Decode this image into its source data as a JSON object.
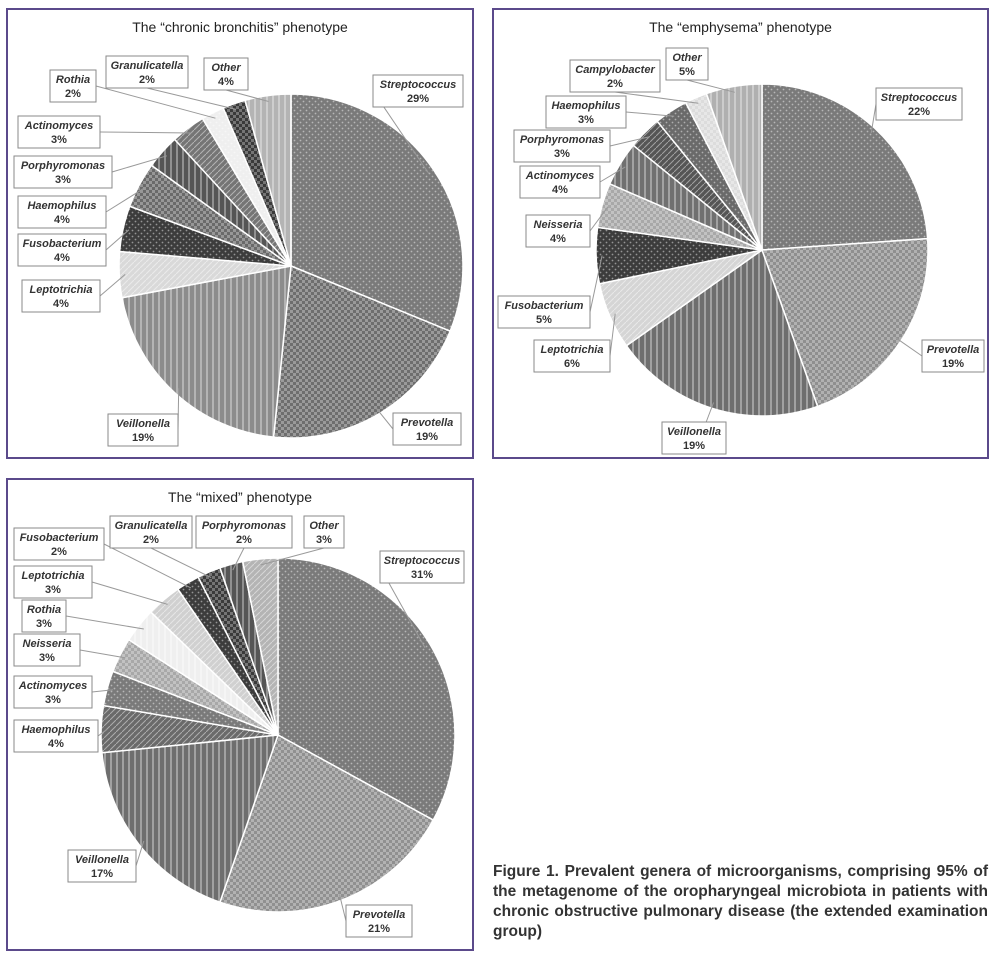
{
  "chart_data": [
    {
      "type": "pie",
      "title": "The “chronic bronchitis” phenotype",
      "series": [
        {
          "values": [
            29,
            19,
            19,
            4,
            4,
            4,
            3,
            3,
            2,
            2,
            4
          ]
        }
      ],
      "categories": [
        "Streptococcus",
        "Prevotella",
        "Veillonella",
        "Leptotrichia",
        "Fusobacterium",
        "Haemophilus",
        "Porphyromonas",
        "Actinomyces",
        "Rothia",
        "Granulicatella",
        "Other"
      ],
      "value_labels": [
        "29%",
        "19%",
        "19%",
        "4%",
        "4%",
        "4%",
        "3%",
        "3%",
        "2%",
        "2%",
        "4%"
      ],
      "colors": [
        "#7a7a7a",
        "#6e6e6e",
        "#8c8c8c",
        "#d9d9d9",
        "#3c3c3c",
        "#6a6a6a",
        "#555555",
        "#757575",
        "#efefef",
        "#3a3a3a",
        "#b4b4b4"
      ]
    },
    {
      "type": "pie",
      "title": "The “emphysema” phenotype",
      "series": [
        {
          "values": [
            22,
            19,
            19,
            6,
            5,
            4,
            4,
            3,
            3,
            2,
            5
          ]
        }
      ],
      "categories": [
        "Streptococcus",
        "Prevotella",
        "Veillonella",
        "Leptotrichia",
        "Fusobacterium",
        "Neisseria",
        "Actinomyces",
        "Porphyromonas",
        "Haemophilus",
        "Campylobacter",
        "Other"
      ],
      "value_labels": [
        "22%",
        "19%",
        "19%",
        "6%",
        "5%",
        "4%",
        "4%",
        "3%",
        "3%",
        "2%",
        "5%"
      ],
      "colors": [
        "#7a7a7a",
        "#8f8f8f",
        "#6e6e6e",
        "#d5d5d5",
        "#3c3c3c",
        "#a8a8a8",
        "#707070",
        "#555555",
        "#6a6a6a",
        "#dcdcdc",
        "#b0b0b0"
      ]
    },
    {
      "type": "pie",
      "title": "The “mixed” phenotype",
      "series": [
        {
          "values": [
            31,
            21,
            17,
            4,
            3,
            3,
            3,
            3,
            2,
            2,
            2,
            3
          ]
        }
      ],
      "categories": [
        "Streptococcus",
        "Prevotella",
        "Veillonella",
        "Haemophilus",
        "Actinomyces",
        "Neisseria",
        "Rothia",
        "Leptotrichia",
        "Fusobacterium",
        "Granulicatella",
        "Porphyromonas",
        "Other"
      ],
      "value_labels": [
        "31%",
        "21%",
        "17%",
        "4%",
        "3%",
        "3%",
        "3%",
        "3%",
        "2%",
        "2%",
        "2%",
        "3%"
      ],
      "colors": [
        "#7a7a7a",
        "#909090",
        "#6e6e6e",
        "#6a6a6a",
        "#7a7a7a",
        "#a8a8a8",
        "#efefef",
        "#d0d0d0",
        "#3c3c3c",
        "#3a3a3a",
        "#555555",
        "#b4b4b4"
      ]
    }
  ],
  "caption": "Figure 1. Prevalent genera of microorganisms, comprising 95% of the metagenome of the oropharyngeal microbiota in patients with chronic obstructive pulmonary disease (the extended examination group)"
}
